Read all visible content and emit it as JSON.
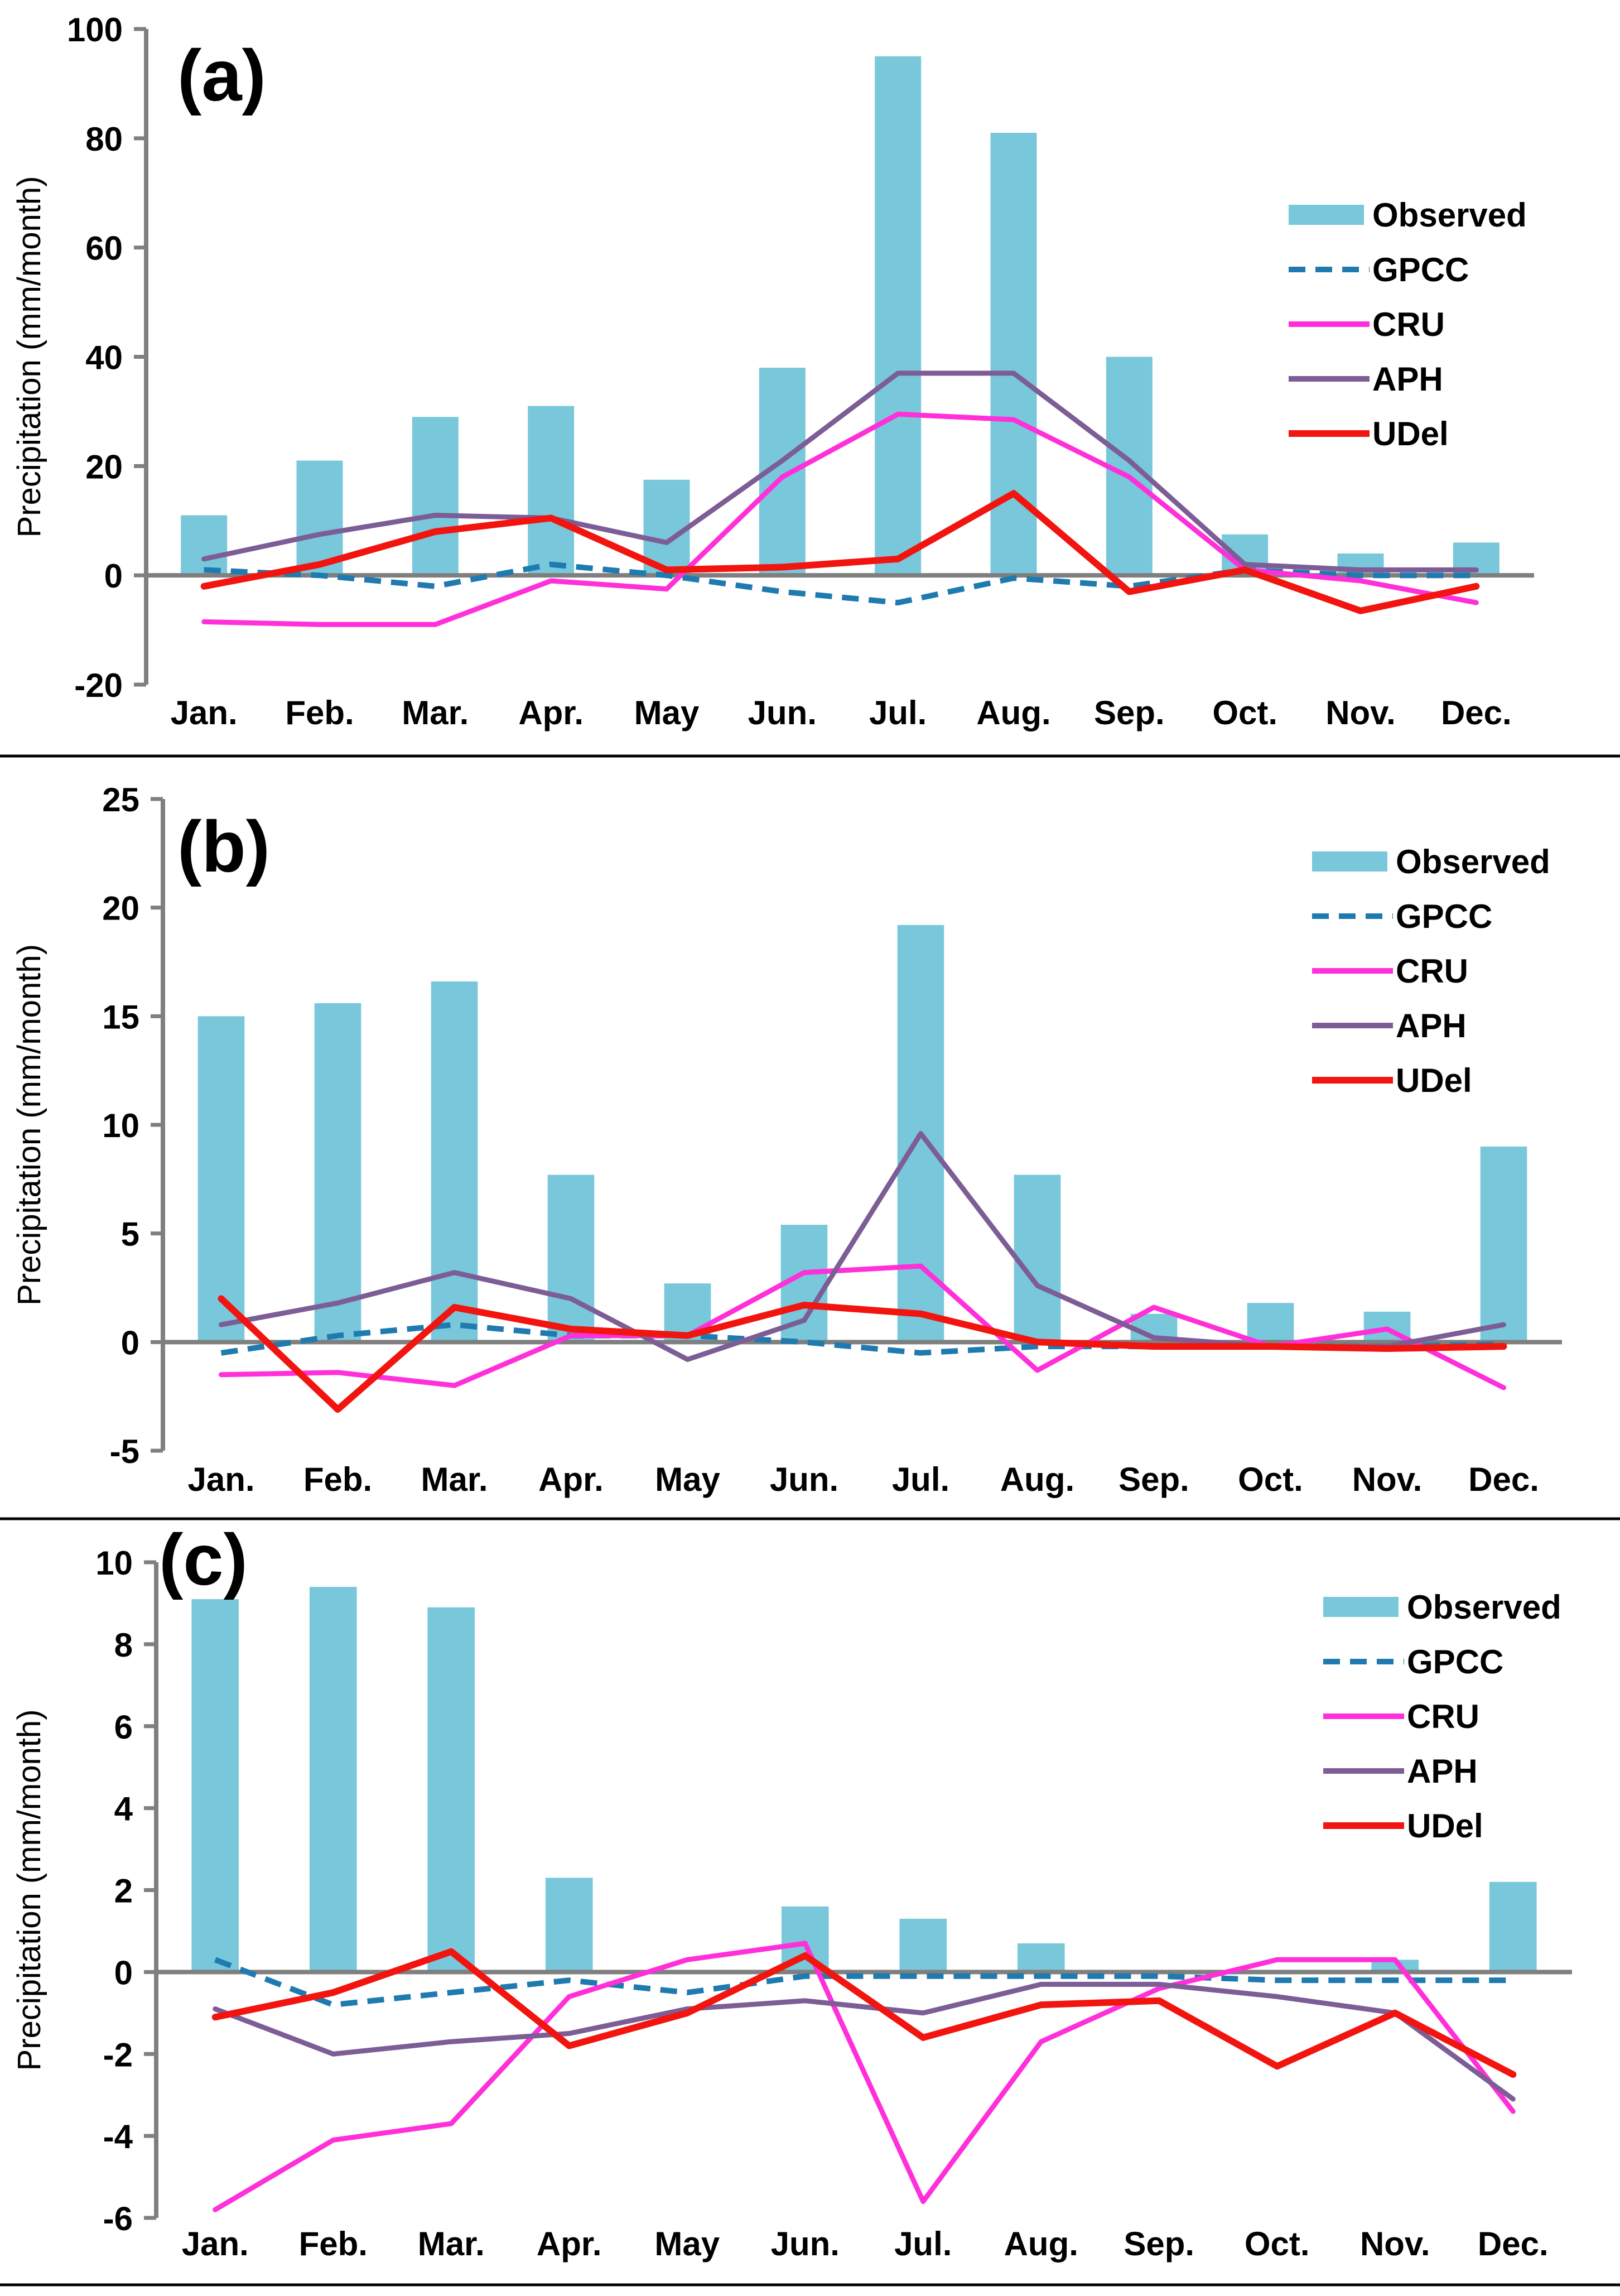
{
  "colors": {
    "observed": "#78c7da",
    "gpcc": "#1f7ab0",
    "cru": "#ff2fd9",
    "aph": "#7d5d95",
    "udel": "#f2140f",
    "axis": "#7f7f7f",
    "text": "#000000",
    "separator": "#000000"
  },
  "chart_data": [
    {
      "type": "bar+line",
      "panel_label": "(a)",
      "ylabel": "Precipitation (mm/month)",
      "ylim": [
        -20,
        100
      ],
      "yticks": [
        "-20",
        "0",
        "20",
        "40",
        "60",
        "80",
        "100"
      ],
      "categories": [
        "Jan.",
        "Feb.",
        "Mar.",
        "Apr.",
        "May",
        "Jun.",
        "Jul.",
        "Aug.",
        "Sep.",
        "Oct.",
        "Nov.",
        "Dec."
      ],
      "legend_position": "right",
      "bars": {
        "name": "Observed",
        "values": [
          11,
          21,
          29,
          31,
          17.5,
          38,
          95,
          81,
          40,
          7.5,
          4,
          6
        ]
      },
      "series": [
        {
          "name": "GPCC",
          "style": "dashed",
          "values": [
            1,
            0,
            -2,
            2,
            0,
            -3,
            -5,
            -0.5,
            -2,
            1,
            0,
            0
          ]
        },
        {
          "name": "CRU",
          "style": "solid",
          "values": [
            -8.5,
            -9,
            -9,
            -1,
            -2.5,
            18,
            29.5,
            28.5,
            18,
            1,
            -1,
            -5
          ]
        },
        {
          "name": "APH",
          "style": "solid",
          "values": [
            3,
            7.5,
            11,
            10.5,
            6,
            21,
            37,
            37,
            21,
            2,
            1,
            1
          ]
        },
        {
          "name": "UDel",
          "style": "solid",
          "values": [
            -2,
            2,
            8,
            10.5,
            1,
            1.5,
            3,
            15,
            -3,
            1,
            -6.5,
            -2
          ]
        }
      ]
    },
    {
      "type": "bar+line",
      "panel_label": "(b)",
      "ylabel": "Precipitation (mm/month)",
      "ylim": [
        -5,
        25
      ],
      "yticks": [
        "-5",
        "0",
        "5",
        "10",
        "15",
        "20",
        "25"
      ],
      "categories": [
        "Jan.",
        "Feb.",
        "Mar.",
        "Apr.",
        "May",
        "Jun.",
        "Jul.",
        "Aug.",
        "Sep.",
        "Oct.",
        "Nov.",
        "Dec."
      ],
      "legend_position": "top-right",
      "bars": {
        "name": "Observed",
        "values": [
          15,
          15.6,
          16.6,
          7.7,
          2.7,
          5.4,
          19.2,
          7.7,
          1.3,
          1.8,
          1.4,
          9
        ]
      },
      "series": [
        {
          "name": "GPCC",
          "style": "dashed",
          "values": [
            -0.5,
            0.3,
            0.8,
            0.3,
            0.3,
            0,
            -0.5,
            -0.2,
            -0.2,
            -0.2,
            -0.2,
            -0.1
          ]
        },
        {
          "name": "CRU",
          "style": "solid",
          "values": [
            -1.5,
            -1.4,
            -2,
            0.3,
            0.3,
            3.2,
            3.5,
            -1.3,
            1.6,
            -0.2,
            0.6,
            -2.1
          ]
        },
        {
          "name": "APH",
          "style": "solid",
          "values": [
            0.8,
            1.8,
            3.2,
            2,
            -0.8,
            1,
            9.6,
            2.6,
            0.2,
            -0.2,
            -0.2,
            0.8
          ]
        },
        {
          "name": "UDel",
          "style": "solid",
          "values": [
            2,
            -3.1,
            1.6,
            0.6,
            0.3,
            1.7,
            1.3,
            0,
            -0.2,
            -0.2,
            -0.3,
            -0.2
          ]
        }
      ]
    },
    {
      "type": "bar+line",
      "panel_label": "(c)",
      "ylabel": "Precipitation (mm/month)",
      "ylim": [
        -6,
        10
      ],
      "yticks": [
        "-6",
        "-4",
        "-2",
        "0",
        "2",
        "4",
        "6",
        "8",
        "10"
      ],
      "categories": [
        "Jan.",
        "Feb.",
        "Mar.",
        "Apr.",
        "May",
        "Jun.",
        "Jul.",
        "Aug.",
        "Sep.",
        "Oct.",
        "Nov.",
        "Dec."
      ],
      "legend_position": "top-right",
      "bars": {
        "name": "Observed",
        "values": [
          9.1,
          9.4,
          8.9,
          2.3,
          0,
          1.6,
          1.3,
          0.7,
          0,
          0,
          0.3,
          2.2
        ]
      },
      "series": [
        {
          "name": "GPCC",
          "style": "dashed",
          "values": [
            0.3,
            -0.8,
            -0.5,
            -0.2,
            -0.5,
            -0.1,
            -0.1,
            -0.1,
            -0.1,
            -0.2,
            -0.2,
            -0.2
          ]
        },
        {
          "name": "CRU",
          "style": "solid",
          "values": [
            -5.8,
            -4.1,
            -3.7,
            -0.6,
            0.3,
            0.7,
            -5.6,
            -1.7,
            -0.4,
            0.3,
            0.3,
            -3.4
          ]
        },
        {
          "name": "APH",
          "style": "solid",
          "values": [
            -0.9,
            -2,
            -1.7,
            -1.5,
            -0.9,
            -0.7,
            -1,
            -0.3,
            -0.3,
            -0.6,
            -1,
            -3.1
          ]
        },
        {
          "name": "UDel",
          "style": "solid",
          "values": [
            -1.1,
            -0.5,
            0.5,
            -1.8,
            -1,
            0.4,
            -1.6,
            -0.8,
            -0.7,
            -2.3,
            -1,
            -2.5
          ]
        }
      ]
    }
  ]
}
